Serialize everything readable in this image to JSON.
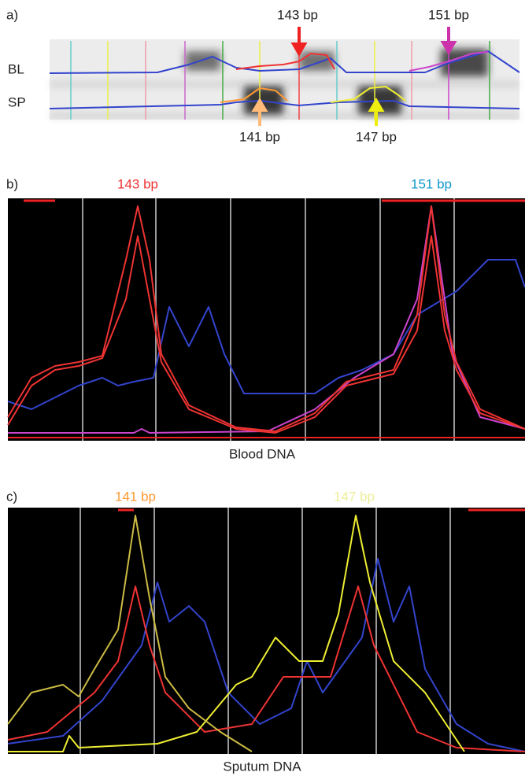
{
  "panel_a": {
    "label": "a)",
    "row_labels": [
      "BL",
      "SP"
    ],
    "markers": [
      "143 bp",
      "151 bp",
      "141 bp",
      "147 bp"
    ]
  },
  "panel_b": {
    "label": "b)",
    "peak_labels": [
      "143 bp",
      "151 bp"
    ],
    "caption": "Blood DNA"
  },
  "panel_c": {
    "label": "c)",
    "peak_labels": [
      "141 bp",
      "147 bp"
    ],
    "caption": "Sputum DNA"
  }
}
